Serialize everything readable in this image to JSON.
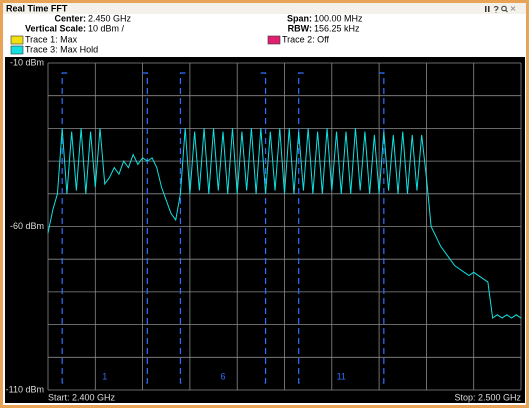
{
  "header": {
    "title": "Real Time FFT",
    "fields": [
      {
        "label": "Center:",
        "value": "2.450 GHz"
      },
      {
        "label": "Vertical Scale:",
        "value": "10 dBm /"
      },
      {
        "label": "Span:",
        "value": "100.00 MHz"
      },
      {
        "label": "RBW:",
        "value": "156.25 kHz"
      }
    ],
    "traces": [
      {
        "label": "Trace 1: Max",
        "color": "#f0e010"
      },
      {
        "label": "Trace 2: Off",
        "color": "#e0206e"
      }
    ]
  },
  "chart_data": {
    "type": "line",
    "x": [
      2.4,
      2.401,
      2.402,
      2.403,
      2.404,
      2.405,
      2.406,
      2.407,
      2.408,
      2.409,
      2.41,
      2.411,
      2.412,
      2.413,
      2.414,
      2.415,
      2.416,
      2.417,
      2.418,
      2.419,
      2.42,
      2.421,
      2.422,
      2.423,
      2.424,
      2.425,
      2.426,
      2.427,
      2.428,
      2.429,
      2.43,
      2.431,
      2.432,
      2.433,
      2.434,
      2.435,
      2.436,
      2.437,
      2.438,
      2.439,
      2.44,
      2.441,
      2.442,
      2.443,
      2.444,
      2.445,
      2.446,
      2.447,
      2.448,
      2.449,
      2.45,
      2.451,
      2.452,
      2.453,
      2.454,
      2.455,
      2.456,
      2.457,
      2.458,
      2.459,
      2.46,
      2.461,
      2.462,
      2.463,
      2.464,
      2.465,
      2.466,
      2.467,
      2.468,
      2.469,
      2.47,
      2.471,
      2.472,
      2.473,
      2.474,
      2.475,
      2.476,
      2.477,
      2.478,
      2.479,
      2.48,
      2.481,
      2.482,
      2.483,
      2.484,
      2.485,
      2.486,
      2.487,
      2.488,
      2.489,
      2.49,
      2.491,
      2.492,
      2.493,
      2.494,
      2.495,
      2.496,
      2.497,
      2.498,
      2.499,
      2.5
    ],
    "series": [
      {
        "name": "Trace 3: Max Hold",
        "color": "#10e0e0",
        "values": [
          -62,
          -55,
          -50,
          -30,
          -50,
          -31,
          -49,
          -30,
          -50,
          -31,
          -48,
          -30,
          -47,
          -45,
          -42,
          -44,
          -40,
          -42,
          -38,
          -41,
          -39,
          -40,
          -39,
          -42,
          -48,
          -52,
          -56,
          -58,
          -50,
          -30,
          -50,
          -31,
          -49,
          -30,
          -50,
          -30,
          -49,
          -31,
          -50,
          -30,
          -50,
          -31,
          -49,
          -30,
          -50,
          -30,
          -50,
          -31,
          -49,
          -30,
          -50,
          -30,
          -50,
          -31,
          -49,
          -30,
          -50,
          -31,
          -50,
          -30,
          -49,
          -31,
          -50,
          -31,
          -50,
          -30,
          -49,
          -31,
          -50,
          -32,
          -50,
          -31,
          -49,
          -32,
          -50,
          -31,
          -50,
          -32,
          -49,
          -32,
          -45,
          -60,
          -63,
          -66,
          -68,
          -70,
          -72,
          -73,
          -74,
          -75,
          -74,
          -75,
          -76,
          -77,
          -88,
          -87,
          -88,
          -87,
          -88,
          -87,
          -88
        ]
      }
    ],
    "xlim": [
      2.4,
      2.5
    ],
    "x_start_label": "Start: 2.400 GHz",
    "x_stop_label": "Stop: 2.500 GHz",
    "xgrid": [
      2.4,
      2.41,
      2.42,
      2.43,
      2.44,
      2.45,
      2.46,
      2.47,
      2.48,
      2.49,
      2.5
    ],
    "ylim": [
      -110,
      -10
    ],
    "yticks": [
      {
        "value": -10,
        "label": "-10 dBm"
      },
      {
        "value": -60,
        "label": "-60 dBm"
      },
      {
        "value": -110,
        "label": "-110 dBm"
      }
    ],
    "ygrid": [
      -10,
      -20,
      -30,
      -40,
      -50,
      -60,
      -70,
      -80,
      -90,
      -100,
      -110
    ],
    "grid": true,
    "channels": [
      {
        "label": "1",
        "range": [
          2.403,
          2.421
        ]
      },
      {
        "label": "6",
        "range": [
          2.428,
          2.446
        ]
      },
      {
        "label": "11",
        "range": [
          2.453,
          2.471
        ]
      }
    ],
    "channel_color": "#2f6fff"
  }
}
